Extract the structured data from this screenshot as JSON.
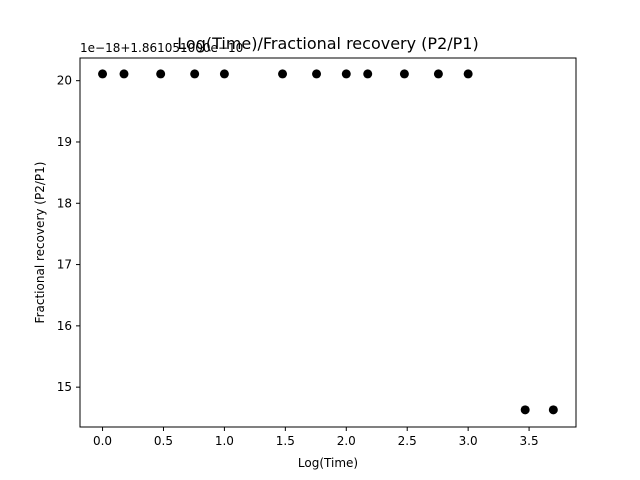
{
  "chart_data": {
    "type": "scatter",
    "title": "Log(Time)/Fractional recovery (P2/P1)",
    "xlabel": "Log(Time)",
    "ylabel": "Fractional recovery (P2/P1)",
    "y_offset_label": "1e−18+1.861051000e−10",
    "xlim": [
      -0.185,
      3.885
    ],
    "ylim": [
      14.35,
      20.37
    ],
    "x_ticks": [
      0.0,
      0.5,
      1.0,
      1.5,
      2.0,
      2.5,
      3.0,
      3.5
    ],
    "x_tick_labels": [
      "0.0",
      "0.5",
      "1.0",
      "1.5",
      "2.0",
      "2.5",
      "3.0",
      "3.5"
    ],
    "y_ticks": [
      15,
      16,
      17,
      18,
      19,
      20
    ],
    "y_tick_labels": [
      "15",
      "16",
      "17",
      "18",
      "19",
      "20"
    ],
    "grid": false,
    "legend": false,
    "marker_color": "#000000",
    "x": [
      0.0,
      0.176,
      0.477,
      0.756,
      1.0,
      1.477,
      1.756,
      2.0,
      2.176,
      2.477,
      2.756,
      3.0,
      3.468,
      3.699
    ],
    "y": [
      20.11,
      20.11,
      20.11,
      20.11,
      20.11,
      20.11,
      20.11,
      20.11,
      20.11,
      20.11,
      20.11,
      20.11,
      14.63,
      14.63
    ]
  }
}
